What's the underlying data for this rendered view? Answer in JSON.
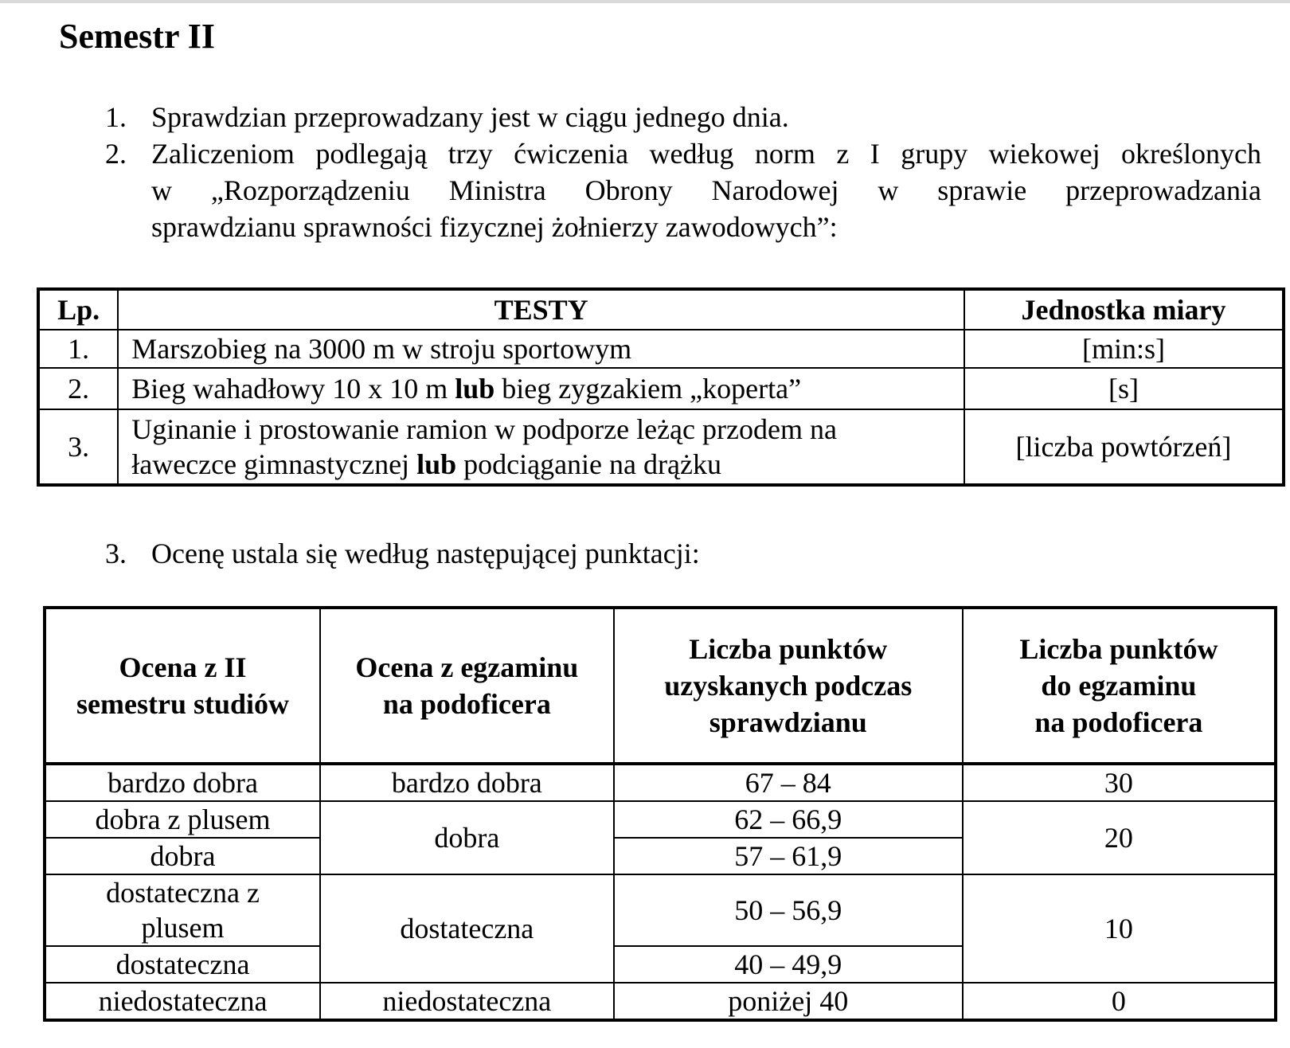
{
  "page_title": "Semestr II",
  "list": {
    "item1": {
      "num": "1.",
      "text": "Sprawdzian przeprowadzany jest w ciągu jednego dnia."
    },
    "item2": {
      "num": "2.",
      "line1": "Zaliczeniom podlegają trzy ćwiczenia według norm z I grupy wiekowej określonych",
      "line2": "w „Rozporządzeniu Ministra Obrony Narodowej w sprawie przeprowadzania",
      "line3": "sprawdzianu sprawności fizycznej żołnierzy zawodowych”:"
    },
    "item3": {
      "num": "3.",
      "text": "Ocenę ustala się według następującej punktacji:"
    }
  },
  "tests_table": {
    "headers": {
      "lp": "Lp.",
      "tests": "TESTY",
      "unit": "Jednostka miary"
    },
    "rows": [
      {
        "lp": "1.",
        "test": "Marszobieg na 3000 m w stroju sportowym",
        "unit": "[min:s]"
      },
      {
        "lp": "2.",
        "test_a": "Bieg wahadłowy 10 x 10 m ",
        "test_bold": "lub",
        "test_b": " bieg zygzakiem „koperta”",
        "unit": "[s]"
      },
      {
        "lp": "3.",
        "test_line1": "Uginanie i prostowanie ramion w podporze leżąc przodem na",
        "test_line2_a": "ławeczce gimnastycznej ",
        "test_bold": "lub",
        "test_line2_b": " podciąganie na drążku",
        "unit": "[liczba powtórzeń]"
      }
    ]
  },
  "score_table": {
    "headers": {
      "col1_line1": "Ocena z II",
      "col1_line2": "semestru studiów",
      "col2_line1": "Ocena z egzaminu",
      "col2_line2": "na podoficera",
      "col3_line1": "Liczba punktów",
      "col3_line2": "uzyskanych podczas",
      "col3_line3": "sprawdzianu",
      "col4_line1": "Liczba punktów",
      "col4_line2": "do egzaminu",
      "col4_line3": "na podoficera"
    },
    "semester_grades": [
      "bardzo dobra",
      "dobra z plusem",
      "dobra",
      "dostateczna z",
      "plusem",
      "dostateczna",
      "niedostateczna"
    ],
    "exam_grades": [
      "bardzo dobra",
      "dobra",
      "dostateczna",
      "niedostateczna"
    ],
    "point_ranges": [
      "67 – 84",
      "62 – 66,9",
      "57 – 61,9",
      "50 – 56,9",
      "40 – 49,9",
      "poniżej 40"
    ],
    "exam_points": [
      "30",
      "20",
      "10",
      "0"
    ]
  }
}
